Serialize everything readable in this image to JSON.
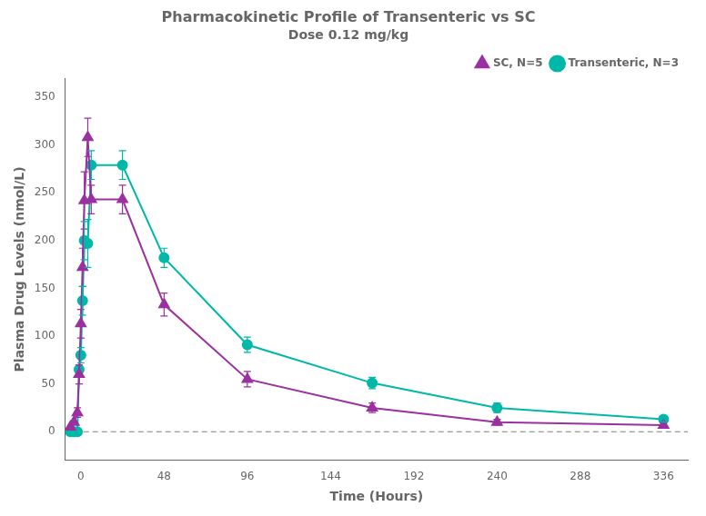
{
  "chart_data": {
    "type": "line",
    "title": "Pharmacokinetic Profile of Transenteric vs SC",
    "subtitle": "Dose 0.12 mg/kg",
    "xlabel": "Time (Hours)",
    "ylabel": "Plasma Drug Levels (nmol/L)",
    "x": [
      -6,
      -4,
      -2,
      -1,
      0,
      1,
      2,
      4,
      6,
      24,
      48,
      96,
      168,
      240,
      336
    ],
    "series": [
      {
        "name": "SC, N=5",
        "color": "#9B30A0",
        "marker": "triangle",
        "line_style": "solid",
        "values": [
          5,
          10,
          20,
          60,
          113,
          172,
          242,
          308,
          243,
          243,
          133,
          55,
          25,
          10,
          7
        ],
        "yerr": [
          0,
          0,
          5,
          10,
          15,
          20,
          30,
          20,
          15,
          15,
          12,
          8,
          5,
          3,
          2
        ]
      },
      {
        "name": "Transenteric, N=3",
        "color": "#00B8A8",
        "marker": "circle",
        "line_style": "solid",
        "values": [
          0,
          0,
          0,
          65,
          80,
          137,
          200,
          197,
          279,
          279,
          182,
          91,
          51,
          25,
          13
        ],
        "yerr": [
          0,
          0,
          0,
          0,
          8,
          15,
          20,
          25,
          15,
          15,
          10,
          8,
          6,
          5,
          3
        ]
      }
    ],
    "xlim": [
      -9,
      350
    ],
    "ylim": [
      -30,
      370
    ],
    "xticks": [
      0,
      48,
      96,
      144,
      192,
      240,
      288,
      336
    ],
    "yticks": [
      0,
      50,
      100,
      150,
      200,
      250,
      300,
      350
    ],
    "grid": false,
    "legend": "upper right",
    "hlines": [
      {
        "y": 0,
        "line_style": "dashed",
        "color": "#808080"
      }
    ]
  }
}
